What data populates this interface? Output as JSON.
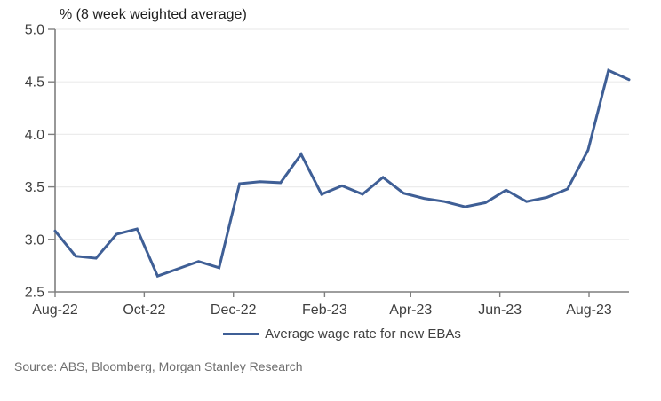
{
  "source": "Source: ABS, Bloomberg, Morgan Stanley Research",
  "colors": {
    "line": "#3F5F96",
    "axis": "#7F7F7F",
    "grid": "#ECECEC",
    "tick_text": "#3F3F3F",
    "title_text": "#1F1F1F",
    "legend_text": "#404040",
    "source_text": "#6E6E6E"
  },
  "chart_data": {
    "type": "line",
    "title": "% (8 week weighted average)",
    "xlabel": "",
    "ylabel": "",
    "ylim": [
      2.5,
      5.0
    ],
    "y_ticks": [
      2.5,
      3.0,
      3.5,
      4.0,
      4.5,
      5.0
    ],
    "y_tick_labels": [
      "2.5",
      "3.0",
      "3.5",
      "4.0",
      "4.5",
      "5.0"
    ],
    "grid": "horizontal",
    "legend_position": "bottom-center",
    "x_range_weeks": [
      0,
      56
    ],
    "x_ticks": [
      {
        "week": 0,
        "label": "Aug-22"
      },
      {
        "week": 8.7,
        "label": "Oct-22"
      },
      {
        "week": 17.4,
        "label": "Dec-22"
      },
      {
        "week": 26.3,
        "label": "Feb-23"
      },
      {
        "week": 34.7,
        "label": "Apr-23"
      },
      {
        "week": 43.4,
        "label": "Jun-23"
      },
      {
        "week": 52.1,
        "label": "Aug-23"
      }
    ],
    "series": [
      {
        "name": "Average wage rate for new EBAs",
        "color": "#3F5F96",
        "x_start_week": 0,
        "x_step_weeks": 2,
        "values": [
          3.08,
          2.84,
          2.82,
          3.05,
          3.1,
          2.65,
          2.72,
          2.79,
          2.73,
          3.53,
          3.55,
          3.54,
          3.81,
          3.43,
          3.51,
          3.43,
          3.59,
          3.44,
          3.39,
          3.36,
          3.31,
          3.35,
          3.47,
          3.36,
          3.4,
          3.48,
          3.85,
          4.61,
          4.52
        ]
      }
    ]
  }
}
